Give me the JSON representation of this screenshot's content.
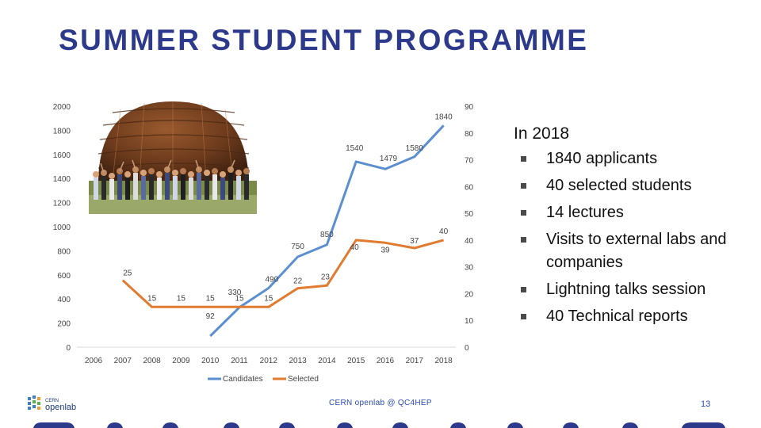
{
  "title": "SUMMER STUDENT PROGRAMME",
  "chart_data": {
    "type": "line",
    "x": [
      "2006",
      "2007",
      "2008",
      "2009",
      "2010",
      "2011",
      "2012",
      "2013",
      "2014",
      "2015",
      "2016",
      "2017",
      "2018"
    ],
    "series": [
      {
        "name": "Candidates",
        "axis": "left",
        "color": "#5b8fd0",
        "values": [
          null,
          null,
          null,
          null,
          92,
          330,
          490,
          750,
          850,
          1540,
          1479,
          1580,
          1840
        ]
      },
      {
        "name": "Selected",
        "axis": "right",
        "color": "#e07b2f",
        "values": [
          null,
          25,
          15,
          15,
          15,
          15,
          15,
          22,
          23,
          40,
          39,
          37,
          40
        ]
      }
    ],
    "y_left": {
      "range": [
        0,
        2000
      ],
      "ticks": [
        "0",
        "200",
        "400",
        "600",
        "800",
        "1000",
        "1200",
        "1400",
        "1600",
        "1800",
        "2000"
      ]
    },
    "y_right": {
      "range": [
        0,
        90
      ],
      "ticks": [
        "0",
        "10",
        "20",
        "30",
        "40",
        "50",
        "60",
        "70",
        "80",
        "90"
      ]
    },
    "data_labels": {
      "candidates": [
        {
          "year": "2010",
          "text": "92"
        },
        {
          "year": "2011",
          "text": "330"
        },
        {
          "year": "2012",
          "text": "490"
        },
        {
          "year": "2013",
          "text": "750"
        },
        {
          "year": "2014",
          "text": "850"
        },
        {
          "year": "2015",
          "text": "1540"
        },
        {
          "year": "2016",
          "text": "1479"
        },
        {
          "year": "2017",
          "text": "1580"
        },
        {
          "year": "2018",
          "text": "1840"
        }
      ],
      "selected": [
        {
          "year": "2007",
          "text": "25"
        },
        {
          "year": "2008",
          "text": "15"
        },
        {
          "year": "2009",
          "text": "15"
        },
        {
          "year": "2010",
          "text": "15"
        },
        {
          "year": "2011",
          "text": "15"
        },
        {
          "year": "2012",
          "text": "15"
        },
        {
          "year": "2013",
          "text": "22"
        },
        {
          "year": "2014",
          "text": "23"
        },
        {
          "year": "2015",
          "text": "40"
        },
        {
          "year": "2016",
          "text": "39"
        },
        {
          "year": "2017",
          "text": "37"
        },
        {
          "year": "2018",
          "text": "40"
        }
      ]
    },
    "legend": {
      "placement": "bottom",
      "items": [
        "Candidates",
        "Selected"
      ]
    },
    "grid": false
  },
  "bullets": {
    "heading": "In 2018",
    "items": [
      "1840 applicants",
      "40 selected students",
      "14 lectures",
      "Visits to external labs and companies",
      "Lightning talks session",
      "40 Technical reports"
    ]
  },
  "footer": {
    "text": "CERN openlab @ QC4HEP",
    "page": "13"
  },
  "logo": {
    "text_top": "CERN",
    "text_bottom": "openlab"
  },
  "colors": {
    "title": "#2d3a8c",
    "candidates": "#5b8fd0",
    "selected": "#e07b2f",
    "footer": "#2a4ab0"
  }
}
